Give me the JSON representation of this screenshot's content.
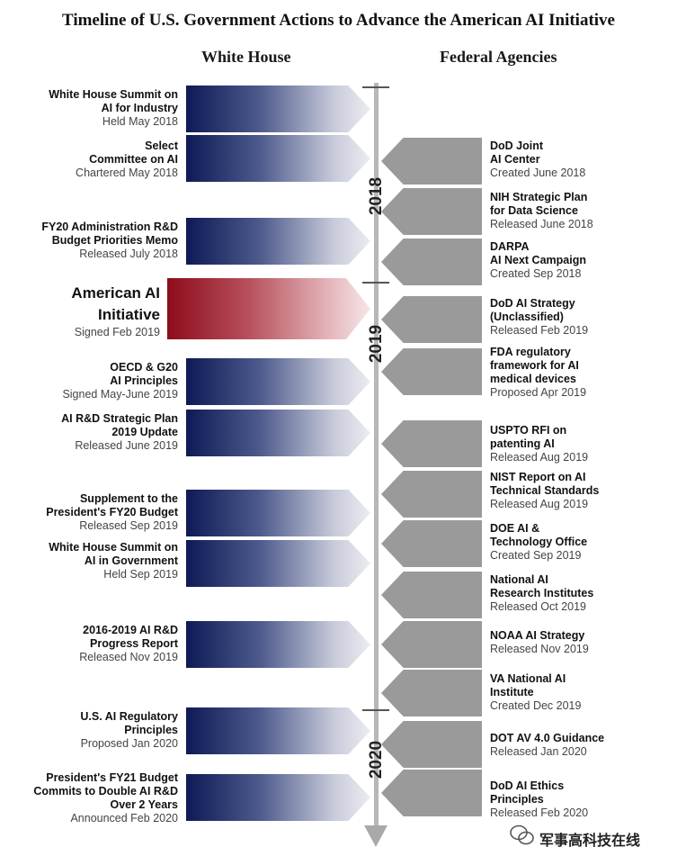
{
  "title": "Timeline of U.S. Government Actions to Advance the American AI Initiative",
  "columns": {
    "white_house": "White House",
    "federal_agencies": "Federal Agencies"
  },
  "years": [
    "2018",
    "2019",
    "2020"
  ],
  "white_house_items": [
    {
      "title_lines": [
        "White House Summit on",
        "AI for Industry"
      ],
      "date": "Held May 2018",
      "highlight": false
    },
    {
      "title_lines": [
        "Select",
        "Committee on AI"
      ],
      "date": "Chartered May 2018",
      "highlight": false
    },
    {
      "title_lines": [
        "FY20 Administration R&D",
        "Budget Priorities Memo"
      ],
      "date": "Released July 2018",
      "highlight": false
    },
    {
      "title_lines": [
        "American AI",
        "Initiative"
      ],
      "date": "Signed Feb 2019",
      "highlight": true
    },
    {
      "title_lines": [
        "OECD & G20",
        "AI Principles"
      ],
      "date": "Signed May-June 2019",
      "highlight": false
    },
    {
      "title_lines": [
        "AI R&D Strategic Plan",
        "2019 Update"
      ],
      "date": "Released June 2019",
      "highlight": false
    },
    {
      "title_lines": [
        "Supplement to the",
        "President's FY20 Budget"
      ],
      "date": "Released Sep 2019",
      "highlight": false
    },
    {
      "title_lines": [
        "White House Summit on",
        "AI in Government"
      ],
      "date": "Held Sep 2019",
      "highlight": false
    },
    {
      "title_lines": [
        "2016-2019 AI R&D",
        "Progress Report"
      ],
      "date": "Released Nov 2019",
      "highlight": false
    },
    {
      "title_lines": [
        "U.S. AI Regulatory",
        "Principles"
      ],
      "date": "Proposed Jan 2020",
      "highlight": false
    },
    {
      "title_lines": [
        "President's FY21 Budget",
        "Commits to Double AI R&D",
        "Over 2 Years"
      ],
      "date": "Announced Feb 2020",
      "highlight": false
    }
  ],
  "federal_items": [
    {
      "title_lines": [
        "DoD Joint",
        "AI Center"
      ],
      "date": "Created June 2018"
    },
    {
      "title_lines": [
        "NIH Strategic Plan",
        "for Data Science"
      ],
      "date": "Released June 2018"
    },
    {
      "title_lines": [
        "DARPA",
        "AI Next Campaign"
      ],
      "date": "Created Sep 2018"
    },
    {
      "title_lines": [
        "DoD AI Strategy",
        "(Unclassified)"
      ],
      "date": "Released Feb 2019"
    },
    {
      "title_lines": [
        "FDA regulatory",
        "framework for AI",
        "medical devices"
      ],
      "date": "Proposed Apr 2019"
    },
    {
      "title_lines": [
        "USPTO RFI on",
        "patenting AI"
      ],
      "date": "Released Aug 2019"
    },
    {
      "title_lines": [
        "NIST Report on AI",
        "Technical Standards"
      ],
      "date": "Released Aug 2019"
    },
    {
      "title_lines": [
        "DOE AI &",
        "Technology Office"
      ],
      "date": "Created Sep 2019"
    },
    {
      "title_lines": [
        "National AI",
        "Research Institutes"
      ],
      "date": "Released Oct 2019"
    },
    {
      "title_lines": [
        "NOAA AI Strategy"
      ],
      "date": "Released Nov 2019"
    },
    {
      "title_lines": [
        "VA National AI",
        "Institute"
      ],
      "date": "Created Dec 2019"
    },
    {
      "title_lines": [
        "DOT AV 4.0 Guidance"
      ],
      "date": "Released Jan 2020"
    },
    {
      "title_lines": [
        "DoD AI Ethics",
        "Principles"
      ],
      "date": "Released Feb 2020"
    }
  ],
  "watermark": "军事高科技在线",
  "colors": {
    "navy": "#0d1a55",
    "red": "#8e0c1b",
    "gray_arrow": "#9a9a9a",
    "axis": "#b7b7b7"
  }
}
